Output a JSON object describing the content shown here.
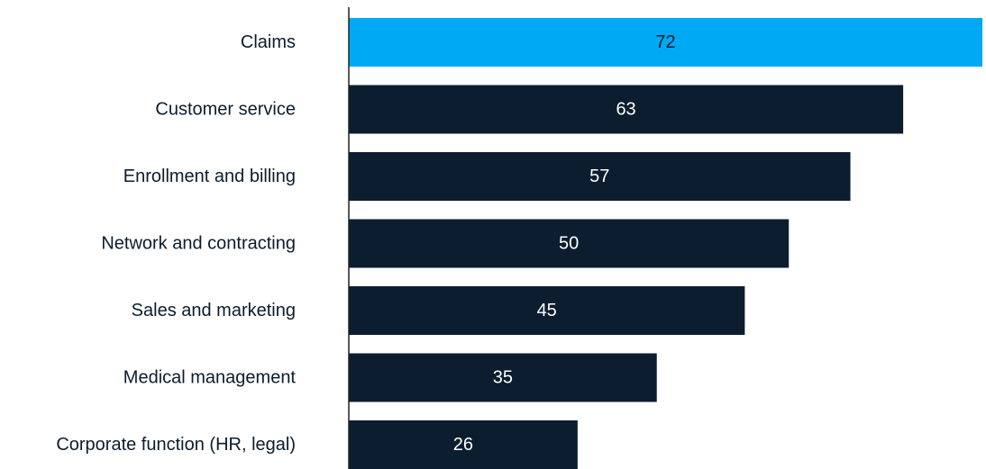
{
  "chart_data": {
    "type": "bar",
    "orientation": "horizontal",
    "categories": [
      "Claims",
      "Customer service",
      "Enrollment and billing",
      "Network and contracting",
      "Sales and marketing",
      "Medical management",
      "Corporate function (HR, legal)"
    ],
    "values": [
      72,
      63,
      57,
      50,
      45,
      35,
      26
    ],
    "highlight_index": 0,
    "title": "",
    "xlabel": "",
    "ylabel": "",
    "xlim": [
      0,
      72
    ],
    "grid": false,
    "legend": "none"
  },
  "colors": {
    "bar": "#0b1d2e",
    "highlight": "#00a9f4",
    "axis": "#222222",
    "label": "#0b1d2e",
    "value_text": "#ffffff",
    "value_text_highlight": "#0b1d2e"
  }
}
